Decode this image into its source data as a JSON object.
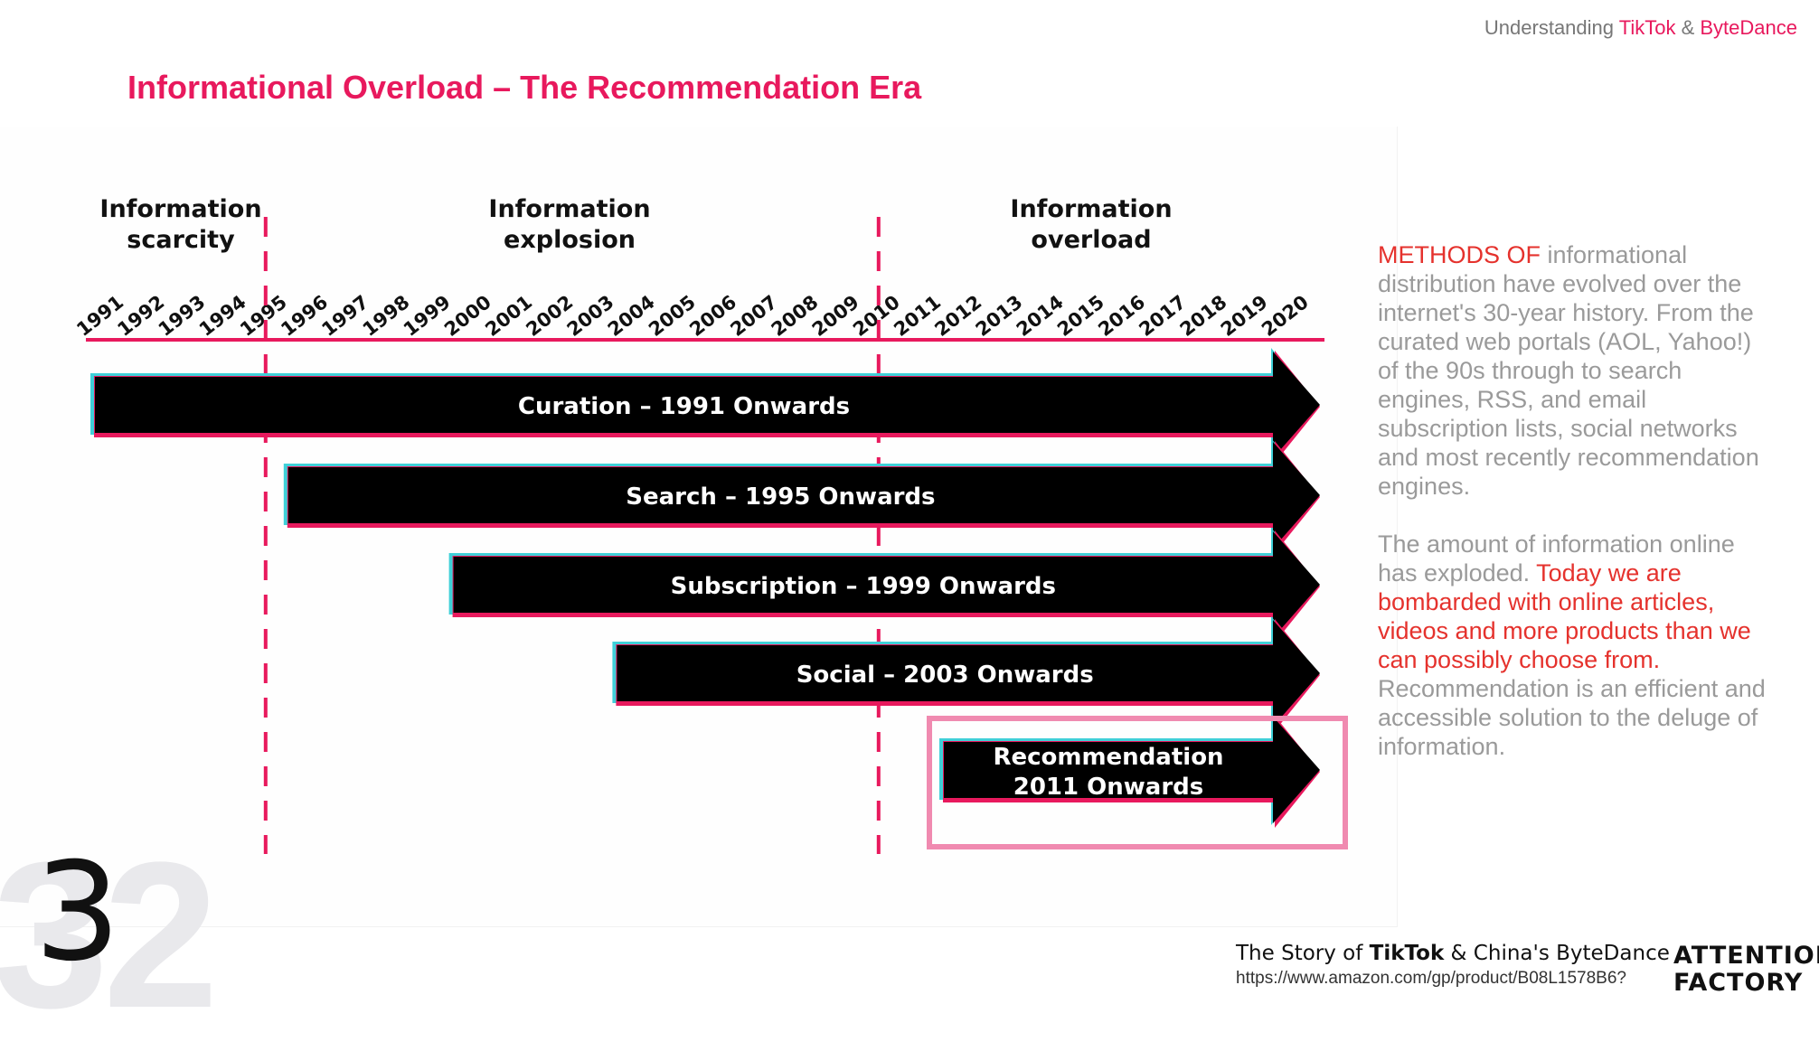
{
  "header": {
    "prefix": "Understanding ",
    "brand1": "TikTok",
    "amp": " & ",
    "brand2": "ByteDance"
  },
  "title": "Informational Overload – The Recommendation Era",
  "diagram": {
    "eras": [
      {
        "line1": "Information",
        "line2": "scarcity"
      },
      {
        "line1": "Information",
        "line2": "explosion"
      },
      {
        "line1": "Information",
        "line2": "overload"
      }
    ],
    "years": [
      "1991",
      "1992",
      "1993",
      "1994",
      "1995",
      "1996",
      "1997",
      "1998",
      "1999",
      "2000",
      "2001",
      "2002",
      "2003",
      "2004",
      "2005",
      "2006",
      "2007",
      "2008",
      "2009",
      "2010",
      "2011",
      "2012",
      "2013",
      "2014",
      "2015",
      "2016",
      "2017",
      "2018",
      "2019",
      "2020"
    ],
    "dividers": [
      "1995",
      "2010"
    ],
    "bars": [
      {
        "label": "Curation – 1991 Onwards",
        "start": "1991"
      },
      {
        "label": "Search – 1995 Onwards",
        "start": "1995"
      },
      {
        "label": "Subscription – 1999 Onwards",
        "start": "1999"
      },
      {
        "label": "Social – 2003 Onwards",
        "start": "2003"
      },
      {
        "label": "Recommendation",
        "label2": "2011 Onwards",
        "start": "2011",
        "highlighted": true
      }
    ],
    "colors": {
      "accent": "#e8195d",
      "bar": "#000000",
      "highlight": "#f08ab0",
      "edge_shadow": "#3fd0d8"
    }
  },
  "side_text": {
    "p1_red": "METHODS OF",
    "p1_rest": " informational distribution have evolved over the internet's 30-year history. From the curated web portals (AOL, Yahoo!) of the 90s through to search engines, RSS, and email subscription lists, social networks and most recently recommendation engines.",
    "p2_start": "The amount of information online has exploded. ",
    "p2_red": "Today we are bombarded with online articles, videos and more products than we can possibly choose from.",
    "p2_end": " Recommendation is an efficient and accessible solution to the deluge of information."
  },
  "page_number": "32",
  "handwritten_mark": "3",
  "footer": {
    "book_prefix": "The Story of ",
    "book_bold": "TikTok",
    "book_suffix": " & China's ByteDance",
    "url": "https://www.amazon.com/gp/product/B08L1578B6?",
    "logo_line1": "ATTENTION",
    "logo_line2": "FACTORY"
  }
}
